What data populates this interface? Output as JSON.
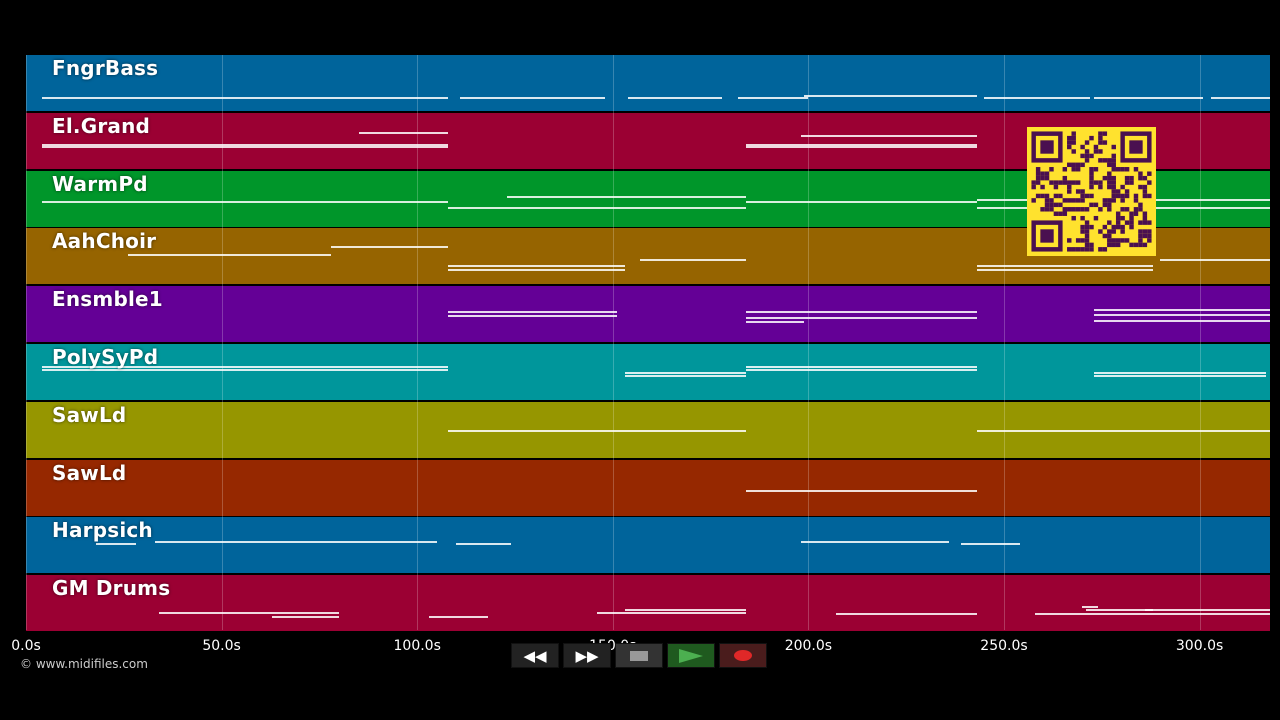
{
  "timeline": {
    "axis_min": 0,
    "axis_max": 318,
    "ticks": [
      "0.0s",
      "50.0s",
      "100.0s",
      "150.0s",
      "200.0s",
      "250.0s",
      "300.0s"
    ],
    "tick_values": [
      0,
      50,
      100,
      150,
      200,
      250,
      300
    ]
  },
  "tracks": [
    {
      "name": "FngrBass",
      "color": "#00649b",
      "segments": [
        [
          4,
          108,
          0.75
        ],
        [
          111,
          148,
          0.75
        ],
        [
          154,
          178,
          0.75
        ],
        [
          182,
          200,
          0.75
        ],
        [
          199,
          243,
          0.72
        ],
        [
          245,
          272,
          0.75
        ],
        [
          273,
          301,
          0.75
        ],
        [
          303,
          318,
          0.75
        ]
      ]
    },
    {
      "name": "El.Grand",
      "color": "#9b0033",
      "segments": [
        [
          4,
          108,
          0.55
        ],
        [
          4,
          108,
          0.6
        ],
        [
          85,
          108,
          0.35
        ],
        [
          184,
          243,
          0.55
        ],
        [
          184,
          243,
          0.6
        ],
        [
          198,
          243,
          0.4
        ]
      ]
    },
    {
      "name": "WarmPd",
      "color": "#00962a",
      "segments": [
        [
          4,
          108,
          0.55
        ],
        [
          108,
          184,
          0.65
        ],
        [
          123,
          184,
          0.45
        ],
        [
          184,
          243,
          0.55
        ],
        [
          243,
          318,
          0.5
        ],
        [
          243,
          318,
          0.65
        ]
      ]
    },
    {
      "name": "AahChoir",
      "color": "#966400",
      "segments": [
        [
          26,
          78,
          0.45
        ],
        [
          78,
          108,
          0.32
        ],
        [
          108,
          153,
          0.65
        ],
        [
          108,
          153,
          0.72
        ],
        [
          157,
          184,
          0.55
        ],
        [
          243,
          288,
          0.65
        ],
        [
          243,
          288,
          0.72
        ],
        [
          290,
          318,
          0.55
        ]
      ]
    },
    {
      "name": "Ensmble1",
      "color": "#640096",
      "segments": [
        [
          108,
          151,
          0.45
        ],
        [
          108,
          151,
          0.52
        ],
        [
          184,
          243,
          0.45
        ],
        [
          184,
          243,
          0.55
        ],
        [
          184,
          199,
          0.62
        ],
        [
          273,
          318,
          0.4
        ],
        [
          273,
          318,
          0.5
        ],
        [
          273,
          318,
          0.6
        ]
      ]
    },
    {
      "name": "PolySyPd",
      "color": "#00969b",
      "segments": [
        [
          4,
          108,
          0.4
        ],
        [
          4,
          108,
          0.45
        ],
        [
          153,
          184,
          0.5
        ],
        [
          153,
          184,
          0.56
        ],
        [
          184,
          243,
          0.4
        ],
        [
          184,
          243,
          0.45
        ],
        [
          273,
          317,
          0.5
        ],
        [
          273,
          317,
          0.56
        ]
      ]
    },
    {
      "name": "SawLd",
      "color": "#969600",
      "segments": [
        [
          108,
          184,
          0.5
        ],
        [
          243,
          318,
          0.5
        ]
      ]
    },
    {
      "name": "SawLd",
      "color": "#962800",
      "segments": [
        [
          184,
          243,
          0.55
        ]
      ]
    },
    {
      "name": "Harpsich",
      "color": "#00649b",
      "segments": [
        [
          18,
          28,
          0.45
        ],
        [
          33,
          105,
          0.42
        ],
        [
          110,
          124,
          0.45
        ],
        [
          198,
          236,
          0.42
        ],
        [
          239,
          254,
          0.45
        ]
      ]
    },
    {
      "name": "GM Drums",
      "color": "#9b0033",
      "segments": [
        [
          34,
          80,
          0.65
        ],
        [
          63,
          80,
          0.72
        ],
        [
          103,
          118,
          0.72
        ],
        [
          146,
          184,
          0.65
        ],
        [
          153,
          184,
          0.6
        ],
        [
          207,
          243,
          0.68
        ],
        [
          258,
          318,
          0.68
        ],
        [
          271,
          318,
          0.6
        ],
        [
          270,
          274,
          0.55
        ],
        [
          286,
          288,
          0.6
        ]
      ]
    }
  ],
  "copyright": "© www.midifiles.com",
  "transport": {
    "rewind_label": "◀◀",
    "forward_label": "▶▶"
  },
  "colors": {
    "background": "#000000",
    "play": "#4caf50",
    "record": "#e02828",
    "qr": "#ffe22e",
    "qr_dark": "#4a1050"
  },
  "qr_icon": "qr-code-icon"
}
